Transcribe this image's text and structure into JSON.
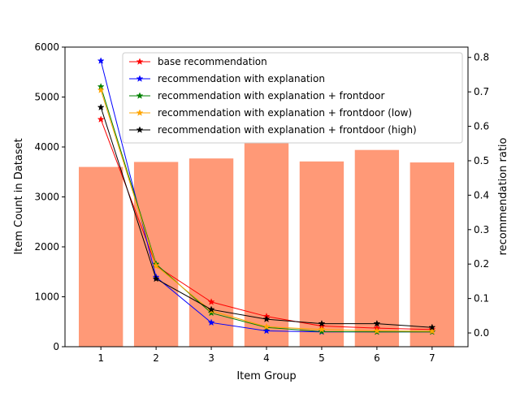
{
  "chart_data": {
    "type": "bar",
    "xlabel": "Item Group",
    "ylabel_left": "Item Count in Dataset",
    "ylabel_right": "recommendation ratio",
    "categories": [
      1,
      2,
      3,
      4,
      5,
      6,
      7
    ],
    "xlim": [
      0.35,
      7.65
    ],
    "ylim_left": [
      0,
      6000
    ],
    "ylim_right": [
      -0.04,
      0.83
    ],
    "yticks_left": [
      0,
      1000,
      2000,
      3000,
      4000,
      5000,
      6000
    ],
    "yticks_right": [
      0.0,
      0.1,
      0.2,
      0.3,
      0.4,
      0.5,
      0.6,
      0.7,
      0.8
    ],
    "grid": false,
    "legend_position": "top-right",
    "bars": {
      "color": "#ff9977",
      "values": [
        3600,
        3700,
        3770,
        4090,
        3710,
        3940,
        3690
      ]
    },
    "series": [
      {
        "name": "base recommendation",
        "color": "#ff0000",
        "axis": "right",
        "values": [
          0.62,
          0.195,
          0.09,
          0.048,
          0.02,
          0.014,
          0.01
        ]
      },
      {
        "name": "recommendation with explanation",
        "color": "#0000ff",
        "axis": "right",
        "values": [
          0.79,
          0.162,
          0.03,
          0.006,
          0.003,
          0.003,
          0.003
        ]
      },
      {
        "name": "recommendation with explanation + frontdoor",
        "color": "#008000",
        "axis": "right",
        "values": [
          0.715,
          0.2,
          0.058,
          0.016,
          0.004,
          0.003,
          0.003
        ]
      },
      {
        "name": "recommendation with explanation + frontdoor (low)",
        "color": "#ffa500",
        "axis": "right",
        "values": [
          0.705,
          0.195,
          0.064,
          0.018,
          0.01,
          0.006,
          0.005
        ]
      },
      {
        "name": "recommendation with explanation + frontdoor (high)",
        "color": "#000000",
        "axis": "right",
        "values": [
          0.655,
          0.157,
          0.068,
          0.04,
          0.027,
          0.027,
          0.016
        ]
      }
    ]
  }
}
